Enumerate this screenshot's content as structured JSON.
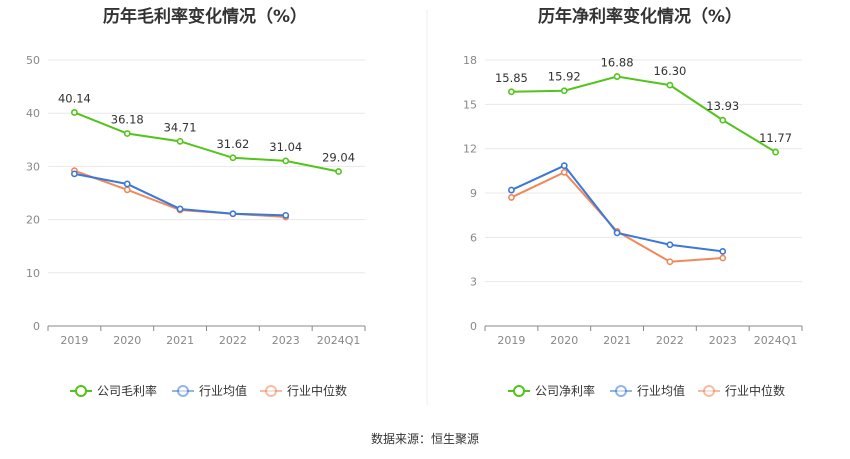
{
  "chart_data": [
    {
      "type": "line",
      "title": "历年毛利率变化情况（%）",
      "categories": [
        "2019",
        "2020",
        "2021",
        "2022",
        "2023",
        "2024Q1"
      ],
      "ylim": [
        0,
        50
      ],
      "yticks": [
        0,
        10,
        20,
        30,
        40,
        50
      ],
      "grid": true,
      "legend_position": "bottom",
      "series": [
        {
          "name": "公司毛利率",
          "color": "#52c41a",
          "values": [
            40.14,
            36.18,
            34.71,
            31.62,
            31.04,
            29.04
          ],
          "labels": [
            "40.14",
            "36.18",
            "34.71",
            "31.62",
            "31.04",
            "29.04"
          ]
        },
        {
          "name": "行业均值",
          "color": "#3b78d8",
          "values": [
            28.6,
            26.7,
            22.0,
            21.1,
            20.8,
            null
          ]
        },
        {
          "name": "行业中位数",
          "color": "#f0885a",
          "values": [
            29.2,
            25.6,
            21.8,
            21.1,
            20.5,
            null
          ]
        }
      ]
    },
    {
      "type": "line",
      "title": "历年净利率变化情况（%）",
      "categories": [
        "2019",
        "2020",
        "2021",
        "2022",
        "2023",
        "2024Q1"
      ],
      "ylim": [
        0,
        18
      ],
      "yticks": [
        0,
        3,
        6,
        9,
        12,
        15,
        18
      ],
      "grid": true,
      "legend_position": "bottom",
      "series": [
        {
          "name": "公司净利率",
          "color": "#52c41a",
          "values": [
            15.85,
            15.92,
            16.88,
            16.3,
            13.93,
            11.77
          ],
          "labels": [
            "15.85",
            "15.92",
            "16.88",
            "16.30",
            "13.93",
            "11.77"
          ]
        },
        {
          "name": "行业均值",
          "color": "#3b78d8",
          "values": [
            9.2,
            10.85,
            6.3,
            5.5,
            5.05,
            null
          ]
        },
        {
          "name": "行业中位数",
          "color": "#f0885a",
          "values": [
            8.7,
            10.4,
            6.4,
            4.35,
            4.6,
            null
          ]
        }
      ]
    }
  ],
  "footer": {
    "source": "数据来源：恒生聚源"
  }
}
